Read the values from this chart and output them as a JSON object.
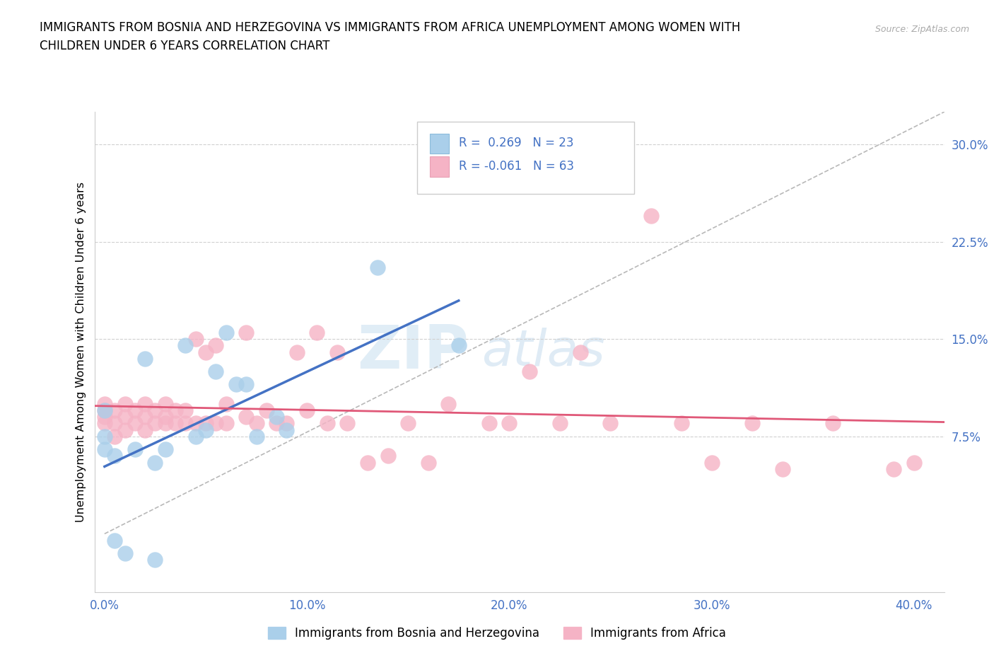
{
  "title_line1": "IMMIGRANTS FROM BOSNIA AND HERZEGOVINA VS IMMIGRANTS FROM AFRICA UNEMPLOYMENT AMONG WOMEN WITH",
  "title_line2": "CHILDREN UNDER 6 YEARS CORRELATION CHART",
  "source": "Source: ZipAtlas.com",
  "ylabel": "Unemployment Among Women with Children Under 6 years",
  "xlim": [
    -0.005,
    0.415
  ],
  "ylim": [
    -0.045,
    0.325
  ],
  "xlabel_vals": [
    0.0,
    0.1,
    0.2,
    0.3,
    0.4
  ],
  "xlabel_ticks": [
    "0.0%",
    "10.0%",
    "20.0%",
    "30.0%",
    "40.0%"
  ],
  "ylabel_vals": [
    0.075,
    0.15,
    0.225,
    0.3
  ],
  "ylabel_ticks": [
    "7.5%",
    "15.0%",
    "22.5%",
    "30.0%"
  ],
  "bosnia_R": 0.269,
  "bosnia_N": 23,
  "africa_R": -0.061,
  "africa_N": 63,
  "bosnia_color": "#aacfea",
  "africa_color": "#f5b3c5",
  "bosnia_line_color": "#4472c4",
  "africa_line_color": "#e05878",
  "watermark_zip": "ZIP",
  "watermark_atlas": "atlas",
  "bosnia_x": [
    0.0,
    0.0,
    0.0,
    0.005,
    0.005,
    0.01,
    0.015,
    0.02,
    0.025,
    0.025,
    0.03,
    0.04,
    0.045,
    0.05,
    0.055,
    0.06,
    0.065,
    0.07,
    0.075,
    0.085,
    0.09,
    0.135,
    0.175
  ],
  "bosnia_y": [
    0.065,
    0.075,
    0.095,
    -0.005,
    0.06,
    -0.015,
    0.065,
    0.135,
    -0.02,
    0.055,
    0.065,
    0.145,
    0.075,
    0.08,
    0.125,
    0.155,
    0.115,
    0.115,
    0.075,
    0.09,
    0.08,
    0.205,
    0.145
  ],
  "africa_x": [
    0.0,
    0.0,
    0.0,
    0.0,
    0.005,
    0.005,
    0.005,
    0.01,
    0.01,
    0.01,
    0.015,
    0.015,
    0.02,
    0.02,
    0.02,
    0.025,
    0.025,
    0.03,
    0.03,
    0.03,
    0.035,
    0.035,
    0.04,
    0.04,
    0.045,
    0.045,
    0.05,
    0.05,
    0.055,
    0.055,
    0.06,
    0.06,
    0.07,
    0.07,
    0.075,
    0.08,
    0.085,
    0.09,
    0.095,
    0.1,
    0.105,
    0.11,
    0.115,
    0.12,
    0.13,
    0.14,
    0.15,
    0.16,
    0.17,
    0.19,
    0.2,
    0.21,
    0.225,
    0.235,
    0.25,
    0.27,
    0.285,
    0.3,
    0.32,
    0.335,
    0.36,
    0.39,
    0.4
  ],
  "africa_y": [
    0.085,
    0.09,
    0.095,
    0.1,
    0.075,
    0.085,
    0.095,
    0.08,
    0.09,
    0.1,
    0.085,
    0.095,
    0.08,
    0.09,
    0.1,
    0.085,
    0.095,
    0.085,
    0.09,
    0.1,
    0.085,
    0.095,
    0.085,
    0.095,
    0.085,
    0.15,
    0.085,
    0.14,
    0.085,
    0.145,
    0.085,
    0.1,
    0.09,
    0.155,
    0.085,
    0.095,
    0.085,
    0.085,
    0.14,
    0.095,
    0.155,
    0.085,
    0.14,
    0.085,
    0.055,
    0.06,
    0.085,
    0.055,
    0.1,
    0.085,
    0.085,
    0.125,
    0.085,
    0.14,
    0.085,
    0.245,
    0.085,
    0.055,
    0.085,
    0.05,
    0.085,
    0.05,
    0.055
  ]
}
